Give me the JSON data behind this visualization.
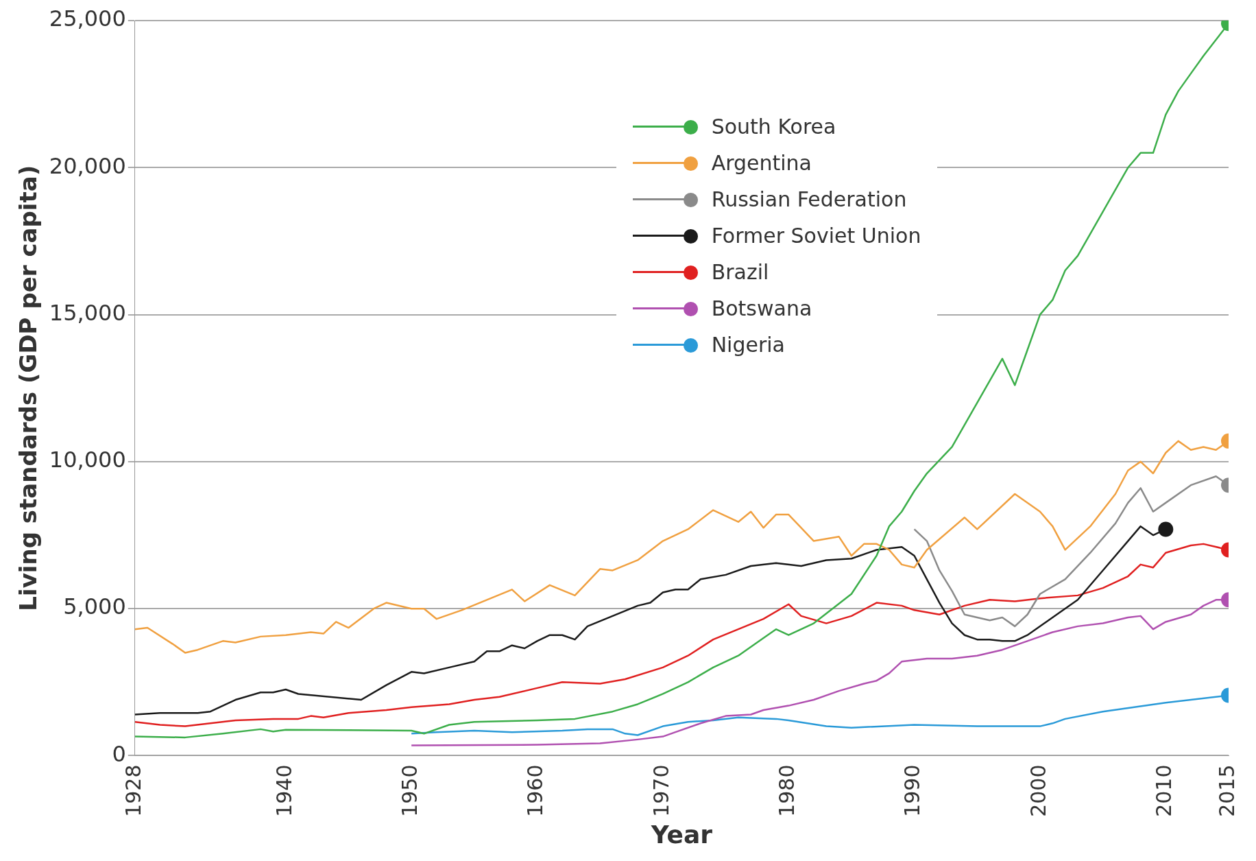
{
  "chart_data": {
    "type": "line",
    "xlabel": "Year",
    "ylabel": "Living standards (GDP per capita)",
    "xlim": [
      1928,
      2015
    ],
    "xticks": [
      1928,
      1940,
      1950,
      1960,
      1970,
      1980,
      1990,
      2000,
      2010,
      2015
    ],
    "ylim": [
      0,
      25000
    ],
    "yticks": [
      0,
      {
        "value": 5000,
        "label": "5,000"
      },
      {
        "value": 10000,
        "label": "10,000"
      },
      {
        "value": 15000,
        "label": "15,000"
      },
      {
        "value": 20000,
        "label": "20,000"
      },
      {
        "value": 25000,
        "label": "25,000"
      }
    ],
    "grid": "y",
    "legend": "top",
    "line_style": "solid",
    "series": [
      {
        "name": "South Korea",
        "color": "#3cae4a",
        "x": [
          1928,
          1932,
          1935,
          1938,
          1939,
          1940,
          1945,
          1950,
          1951,
          1953,
          1955,
          1960,
          1963,
          1966,
          1968,
          1970,
          1972,
          1974,
          1976,
          1978,
          1979,
          1980,
          1982,
          1985,
          1987,
          1988,
          1989,
          1990,
          1991,
          1993,
          1995,
          1997,
          1998,
          1999,
          2000,
          2001,
          2002,
          2003,
          2005,
          2007,
          2008,
          2009,
          2010,
          2011,
          2012,
          2013,
          2015
        ],
        "values": [
          650,
          620,
          750,
          900,
          820,
          880,
          870,
          850,
          750,
          1050,
          1150,
          1200,
          1250,
          1500,
          1750,
          2100,
          2500,
          3000,
          3400,
          4000,
          4300,
          4100,
          4500,
          5500,
          6800,
          7800,
          8300,
          9000,
          9600,
          10500,
          12000,
          13500,
          12600,
          13800,
          15000,
          15500,
          16500,
          17000,
          18500,
          20000,
          20500,
          20500,
          21800,
          22600,
          23200,
          23800,
          24900
        ]
      },
      {
        "name": "Argentina",
        "color": "#f0a040",
        "x": [
          1928,
          1929,
          1931,
          1932,
          1933,
          1935,
          1936,
          1938,
          1940,
          1942,
          1943,
          1944,
          1945,
          1947,
          1948,
          1950,
          1951,
          1952,
          1954,
          1956,
          1958,
          1959,
          1961,
          1963,
          1965,
          1966,
          1968,
          1970,
          1972,
          1974,
          1975,
          1976,
          1977,
          1978,
          1979,
          1980,
          1982,
          1984,
          1985,
          1986,
          1987,
          1988,
          1989,
          1990,
          1991,
          1994,
          1995,
          1998,
          2000,
          2001,
          2002,
          2004,
          2006,
          2007,
          2008,
          2009,
          2010,
          2011,
          2012,
          2013,
          2014,
          2015
        ],
        "values": [
          4300,
          4350,
          3800,
          3500,
          3600,
          3900,
          3850,
          4050,
          4100,
          4200,
          4150,
          4550,
          4350,
          5000,
          5200,
          5000,
          5000,
          4650,
          4950,
          5300,
          5650,
          5250,
          5800,
          5450,
          6350,
          6300,
          6650,
          7300,
          7700,
          8350,
          8150,
          7950,
          8300,
          7750,
          8200,
          8200,
          7300,
          7450,
          6800,
          7200,
          7200,
          7000,
          6500,
          6400,
          7000,
          8100,
          7700,
          8900,
          8300,
          7800,
          7000,
          7800,
          8900,
          9700,
          10000,
          9600,
          10300,
          10700,
          10400,
          10500,
          10400,
          10700
        ]
      },
      {
        "name": "Russian Federation",
        "color": "#8a8a8a",
        "x": [
          1990,
          1991,
          1992,
          1993,
          1994,
          1996,
          1997,
          1998,
          1999,
          2000,
          2002,
          2004,
          2006,
          2007,
          2008,
          2009,
          2010,
          2012,
          2014,
          2015
        ],
        "values": [
          7700,
          7300,
          6300,
          5600,
          4800,
          4600,
          4700,
          4400,
          4800,
          5500,
          6000,
          6900,
          7900,
          8600,
          9100,
          8300,
          8600,
          9200,
          9500,
          9200
        ]
      },
      {
        "name": "Former Soviet Union",
        "color": "#1a1a1a",
        "x": [
          1928,
          1930,
          1933,
          1934,
          1936,
          1938,
          1939,
          1940,
          1941,
          1946,
          1948,
          1950,
          1951,
          1953,
          1955,
          1956,
          1957,
          1958,
          1959,
          1960,
          1961,
          1962,
          1963,
          1964,
          1966,
          1968,
          1969,
          1970,
          1971,
          1972,
          1973,
          1975,
          1977,
          1979,
          1981,
          1983,
          1985,
          1987,
          1989,
          1990,
          1991,
          1992,
          1993,
          1994,
          1995,
          1996,
          1997,
          1998,
          1999,
          2001,
          2003,
          2005,
          2007,
          2008,
          2009,
          2010
        ],
        "values": [
          1400,
          1450,
          1450,
          1500,
          1900,
          2150,
          2150,
          2250,
          2100,
          1900,
          2400,
          2850,
          2800,
          3000,
          3200,
          3550,
          3550,
          3750,
          3650,
          3900,
          4100,
          4100,
          3950,
          4400,
          4750,
          5100,
          5200,
          5550,
          5650,
          5650,
          6000,
          6150,
          6450,
          6550,
          6450,
          6650,
          6700,
          7000,
          7100,
          6800,
          6000,
          5200,
          4500,
          4100,
          3950,
          3950,
          3900,
          3900,
          4100,
          4700,
          5300,
          6300,
          7300,
          7800,
          7500,
          7700
        ]
      },
      {
        "name": "Brazil",
        "color": "#e02020",
        "x": [
          1928,
          1930,
          1932,
          1934,
          1936,
          1939,
          1941,
          1942,
          1943,
          1945,
          1948,
          1950,
          1953,
          1955,
          1957,
          1960,
          1962,
          1965,
          1967,
          1970,
          1972,
          1974,
          1976,
          1978,
          1980,
          1981,
          1983,
          1985,
          1987,
          1989,
          1990,
          1992,
          1994,
          1996,
          1998,
          2000,
          2003,
          2005,
          2007,
          2008,
          2009,
          2010,
          2012,
          2013,
          2015
        ],
        "values": [
          1150,
          1050,
          1000,
          1100,
          1200,
          1250,
          1250,
          1350,
          1300,
          1450,
          1550,
          1650,
          1750,
          1900,
          2000,
          2300,
          2500,
          2450,
          2600,
          3000,
          3400,
          3950,
          4300,
          4650,
          5150,
          4750,
          4500,
          4750,
          5200,
          5100,
          4950,
          4800,
          5100,
          5300,
          5250,
          5350,
          5450,
          5700,
          6100,
          6500,
          6400,
          6900,
          7150,
          7200,
          7000
        ]
      },
      {
        "name": "Botswana",
        "color": "#b050b0",
        "x": [
          1950,
          1960,
          1965,
          1968,
          1970,
          1971,
          1973,
          1975,
          1977,
          1978,
          1980,
          1982,
          1984,
          1986,
          1987,
          1988,
          1989,
          1991,
          1993,
          1995,
          1997,
          1999,
          2001,
          2003,
          2005,
          2007,
          2008,
          2009,
          2010,
          2012,
          2013,
          2014,
          2015
        ],
        "values": [
          350,
          370,
          420,
          550,
          650,
          800,
          1100,
          1350,
          1400,
          1550,
          1700,
          1900,
          2200,
          2450,
          2550,
          2800,
          3200,
          3300,
          3300,
          3400,
          3600,
          3900,
          4200,
          4400,
          4500,
          4700,
          4750,
          4300,
          4550,
          4800,
          5100,
          5300,
          5300
        ]
      },
      {
        "name": "Nigeria",
        "color": "#2a9ad8",
        "x": [
          1950,
          1952,
          1955,
          1958,
          1962,
          1964,
          1966,
          1967,
          1968,
          1970,
          1972,
          1974,
          1976,
          1979,
          1980,
          1983,
          1985,
          1990,
          1995,
          2000,
          2001,
          2002,
          2005,
          2010,
          2015
        ],
        "values": [
          750,
          800,
          850,
          800,
          850,
          900,
          900,
          750,
          700,
          1000,
          1150,
          1200,
          1300,
          1250,
          1200,
          1000,
          950,
          1050,
          1000,
          1000,
          1100,
          1250,
          1500,
          1800,
          2050
        ]
      }
    ]
  }
}
